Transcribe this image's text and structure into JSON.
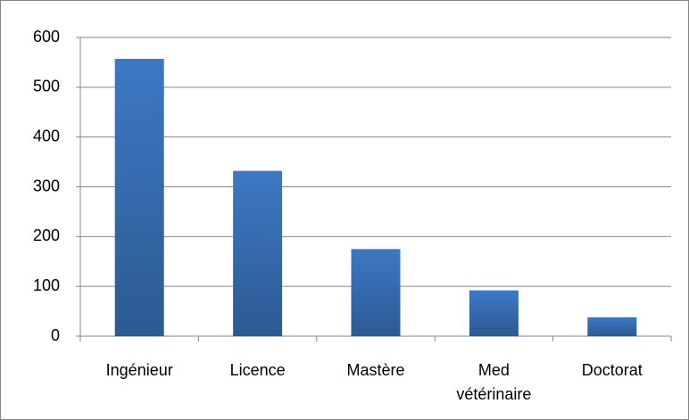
{
  "chart_data": {
    "type": "bar",
    "categories": [
      "Ingénieur",
      "Licence",
      "Mastère",
      "Med vétérinaire",
      "Doctorat"
    ],
    "values": [
      557,
      332,
      175,
      92,
      38
    ],
    "color": "#3a6fb5",
    "ylim": [
      0,
      600
    ],
    "yticks": [
      0,
      100,
      200,
      300,
      400,
      500,
      600
    ],
    "grid": true
  }
}
